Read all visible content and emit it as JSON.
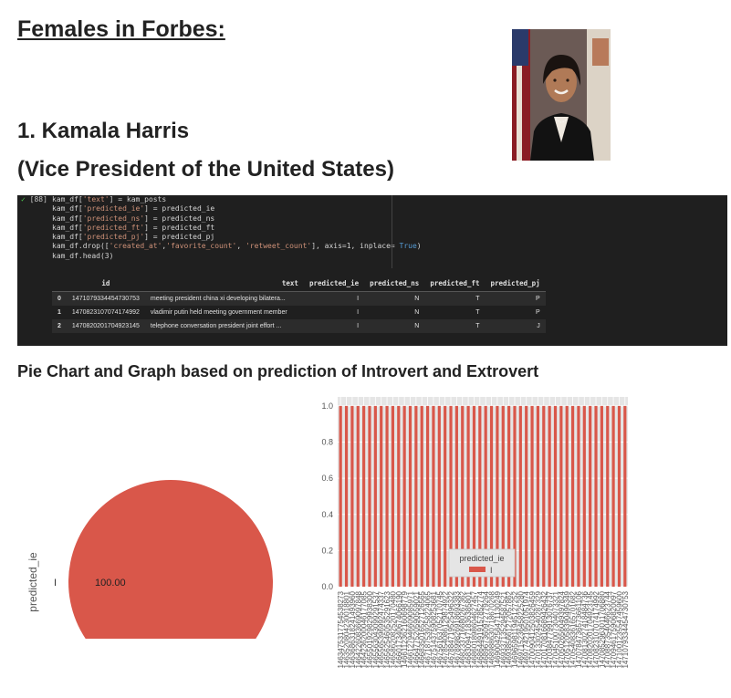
{
  "page": {
    "title": "Females in Forbes:",
    "heading1": "1. Kamala Harris",
    "heading2": "(Vice President of the United States)",
    "subtitle": "Pie Chart and Graph based on prediction of Introvert and Extrovert"
  },
  "cell": {
    "prompt": "[88]",
    "lines": [
      [
        "kam_df[",
        "'text'",
        "] = kam_posts"
      ],
      [
        "kam_df[",
        "'predicted_ie'",
        "] = predicted_ie"
      ],
      [
        "kam_df[",
        "'predicted_ns'",
        "] = predicted_ns"
      ],
      [
        "kam_df[",
        "'predicted_ft'",
        "] = predicted_ft"
      ],
      [
        "kam_df[",
        "'predicted_pj'",
        "] = predicted_pj"
      ]
    ],
    "drop_line": {
      "a": "kam_df.drop([",
      "s1": "'created_at'",
      "b": ",",
      "s2": "'favorite_count'",
      "c": ", ",
      "s3": "'retweet_count'",
      "d": "], axis=1, inplace= ",
      "kw": "True",
      "e": ")"
    },
    "head_line": "kam_df.head(3)"
  },
  "table": {
    "columns": [
      "",
      "id",
      "text",
      "predicted_ie",
      "predicted_ns",
      "predicted_ft",
      "predicted_pj"
    ],
    "rows": [
      [
        "0",
        "1471079334454730753",
        "meeting president china xi developing bilatera...",
        "I",
        "N",
        "T",
        "P"
      ],
      [
        "1",
        "1470823107074174992",
        "vladimir putin held meeting government member",
        "I",
        "N",
        "T",
        "P"
      ],
      [
        "2",
        "1470820201704923145",
        "telephone conversation president joint effort ...",
        "I",
        "N",
        "T",
        "J"
      ]
    ]
  },
  "chart_data": [
    {
      "type": "pie",
      "ylabel": "predicted_ie",
      "categories": [
        "I"
      ],
      "values": [
        100.0
      ],
      "slice_labels": [
        "I"
      ],
      "autopct_labels": [
        "100.00"
      ],
      "colors": [
        "#d9574a"
      ]
    },
    {
      "type": "bar",
      "values_count": 50,
      "value": 1.0,
      "ylim": [
        0,
        1.05
      ],
      "yticks": [
        "0.0",
        "0.2",
        "0.4",
        "0.6",
        "0.8",
        "1.0"
      ],
      "legend_title": "predicted_ie",
      "legend_entries": [
        "I"
      ],
      "bar_color": "#d9574a",
      "categories": [
        "1463475317754538273",
        "1463520804230018801",
        "1463686318241493960",
        "1464226083669097848",
        "1464236200046177085",
        "1465501929829938300",
        "1465563043099291537",
        "1465565396992474337",
        "1465625460535291623",
        "1465862082520170480",
        "1466017340674066190",
        "1466112362160698779",
        "1466127946609085971",
        "1466477520590559021",
        "1466835016527126565",
        "1467187539258224065",
        "1467514375908253681",
        "1467561637052170745",
        "1467854086129874922",
        "1467884719525496322",
        "1467899826918693383",
        "1468233716680267362",
        "1468309471836385801",
        "1468601898604627457",
        "1468644919157852774",
        "1468967360972779264",
        "1468988630718670268",
        "1469004256471130249",
        "1469337135294587521",
        "1469385661272057862",
        "1469659811945127252",
        "1469715236458225280",
        "1469774219501051974",
        "1470090412503826459",
        "1470133024540287329",
        "1470170816689426432",
        "1470384779913076737",
        "1470451007304073321",
        "1470502656049397824",
        "1470512058390495349",
        "1470540836165701682",
        "1470784736573661106",
        "1470813027418484736",
        "1470820201704923145",
        "1470823107074174992",
        "1470852963011706880",
        "1470887354046623744",
        "1470946175906820097",
        "1471001235547459600",
        "1471079334454730753"
      ]
    }
  ]
}
